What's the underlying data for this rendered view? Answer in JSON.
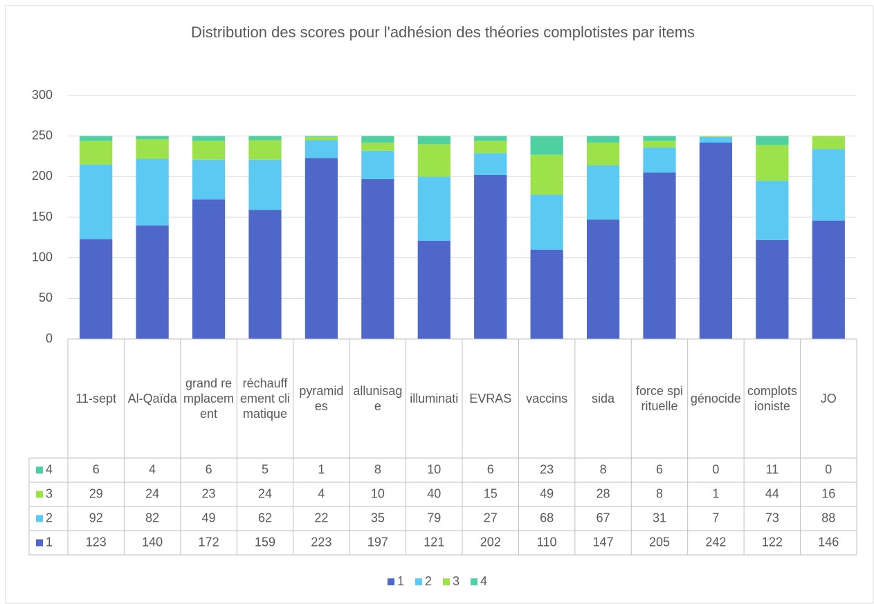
{
  "chart_data": {
    "type": "bar",
    "stacked": true,
    "title": "Distribution des scores pour l'adhésion des théories complotistes par items",
    "categories": [
      "11-sept",
      "Al-Qaïda",
      "grand remplacement",
      "réchauffement climatique",
      "pyramides",
      "allunisage",
      "illuminati",
      "EVRAS",
      "vaccins",
      "sida",
      "force spirituelle",
      "génocide",
      "complotsioniste",
      "JO"
    ],
    "series": [
      {
        "name": "1",
        "color": "#4f67c9",
        "values": [
          123,
          140,
          172,
          159,
          223,
          197,
          121,
          202,
          110,
          147,
          205,
          242,
          122,
          146
        ]
      },
      {
        "name": "2",
        "color": "#5bc9f1",
        "values": [
          92,
          82,
          49,
          62,
          22,
          35,
          79,
          27,
          68,
          67,
          31,
          7,
          73,
          88
        ]
      },
      {
        "name": "3",
        "color": "#9de14b",
        "values": [
          29,
          24,
          23,
          24,
          4,
          10,
          40,
          15,
          49,
          28,
          8,
          1,
          44,
          16
        ]
      },
      {
        "name": "4",
        "color": "#4fd0a0",
        "values": [
          6,
          4,
          6,
          5,
          1,
          8,
          10,
          6,
          23,
          8,
          6,
          0,
          11,
          0
        ]
      }
    ],
    "ylim": [
      0,
      300
    ],
    "yticks": [
      0,
      50,
      100,
      150,
      200,
      250,
      300
    ],
    "grid": true,
    "legend": "bottom",
    "data_table": true
  }
}
